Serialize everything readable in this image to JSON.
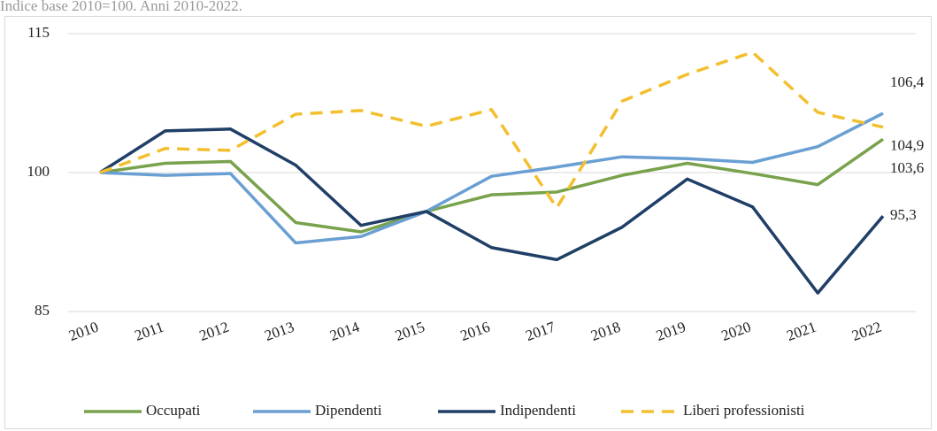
{
  "chart_data": {
    "type": "line",
    "subtitle": "Indice base 2010=100. Anni 2010-2022.",
    "categories": [
      "2010",
      "2011",
      "2012",
      "2013",
      "2014",
      "2015",
      "2016",
      "2017",
      "2018",
      "2019",
      "2020",
      "2021",
      "2022"
    ],
    "series": [
      {
        "name": "Occupati",
        "color": "#78a24c",
        "dash": false,
        "values": [
          100,
          101.0,
          101.2,
          94.6,
          93.6,
          95.8,
          97.6,
          97.9,
          99.7,
          101.0,
          99.9,
          98.7,
          103.6
        ],
        "value_labels": [
          null,
          null,
          null,
          null,
          null,
          null,
          null,
          null,
          null,
          null,
          null,
          null,
          "103,6"
        ]
      },
      {
        "name": "Dipendenti",
        "color": "#6a9fd3",
        "dash": false,
        "values": [
          100,
          99.7,
          99.9,
          92.4,
          93.1,
          95.8,
          99.6,
          100.6,
          101.7,
          101.5,
          101.1,
          102.8,
          106.4
        ],
        "value_labels": [
          null,
          null,
          null,
          null,
          null,
          null,
          null,
          null,
          null,
          null,
          null,
          null,
          "106,4"
        ]
      },
      {
        "name": "Indipendenti",
        "color": "#203f67",
        "dash": false,
        "values": [
          100,
          104.5,
          104.7,
          100.8,
          94.3,
          95.8,
          91.9,
          90.6,
          94.1,
          99.3,
          96.3,
          87.0,
          95.3
        ],
        "value_labels": [
          null,
          null,
          null,
          null,
          null,
          null,
          null,
          null,
          null,
          null,
          null,
          null,
          "95,3"
        ]
      },
      {
        "name": "Liberi professionisti",
        "color": "#f3bf2f",
        "dash": true,
        "values": [
          100,
          102.6,
          102.4,
          106.3,
          106.7,
          105.0,
          106.8,
          96.2,
          107.7,
          110.6,
          113.0,
          106.5,
          104.9
        ],
        "value_labels": [
          null,
          null,
          null,
          null,
          null,
          null,
          null,
          null,
          null,
          null,
          null,
          null,
          "104,9"
        ]
      }
    ],
    "ylim": [
      85,
      115
    ],
    "yticks": [
      85,
      100,
      115
    ],
    "grid": true,
    "legend": "bottom"
  }
}
